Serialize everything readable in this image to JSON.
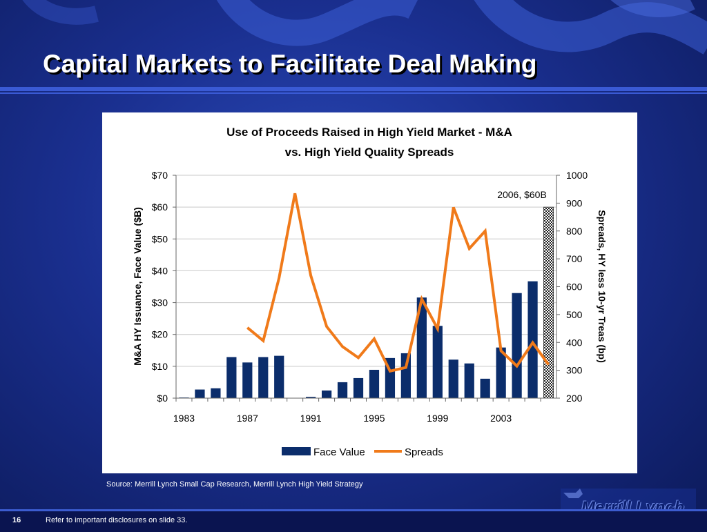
{
  "slide": {
    "title": "Capital Markets to Facilitate Deal Making",
    "source": "Source: Merrill Lynch Small Cap Research, Merrill Lynch High Yield Strategy",
    "slide_number": "16",
    "disclaimer": "Refer to important disclosures on slide 33.",
    "logo_text": "Merrill Lynch",
    "colors": {
      "background": "#1a2f8f",
      "bar": "#0b2d6b",
      "line": "#f07a1a"
    }
  },
  "chart_data": {
    "type": "bar",
    "title_line1": "Use of Proceeds Raised in High Yield Market - M&A",
    "title_line2": "vs. High Yield Quality Spreads",
    "ylabel": "M&A HY Issuance, Face Value ($B)",
    "y2label": "Spreads, HY less 10-yr Treas (bp)",
    "ylim": [
      0,
      70
    ],
    "y2lim": [
      200,
      1000
    ],
    "yticks": [
      "$0",
      "$10",
      "$20",
      "$30",
      "$40",
      "$50",
      "$60",
      "$70"
    ],
    "y2ticks": [
      "200",
      "300",
      "400",
      "500",
      "600",
      "700",
      "800",
      "900",
      "1000"
    ],
    "xticks": [
      "1983",
      "1987",
      "1991",
      "1995",
      "1999",
      "2003"
    ],
    "categories": [
      1983,
      1984,
      1985,
      1986,
      1987,
      1988,
      1989,
      1990,
      1991,
      1992,
      1993,
      1994,
      1995,
      1996,
      1997,
      1998,
      1999,
      2000,
      2001,
      2002,
      2003,
      2004,
      2005,
      2006
    ],
    "series": [
      {
        "name": "Face Value",
        "type": "bar",
        "values": [
          0.2,
          2.7,
          3.1,
          12.9,
          11.2,
          12.9,
          13.3,
          0.1,
          0.4,
          2.4,
          5.0,
          6.3,
          8.9,
          12.6,
          14.1,
          31.6,
          22.7,
          12.1,
          10.9,
          6.1,
          15.9,
          33.0,
          36.7,
          60.0
        ]
      },
      {
        "name": "Spreads",
        "type": "line",
        "axis": "right",
        "values": [
          null,
          null,
          null,
          null,
          453,
          406,
          632,
          935,
          640,
          457,
          385,
          345,
          413,
          297,
          310,
          556,
          449,
          885,
          737,
          800,
          370,
          315,
          399,
          320
        ]
      }
    ],
    "annotation": "2006, $60B",
    "legend": [
      "Face Value",
      "Spreads"
    ],
    "legend_position": "bottom",
    "grid": true
  }
}
